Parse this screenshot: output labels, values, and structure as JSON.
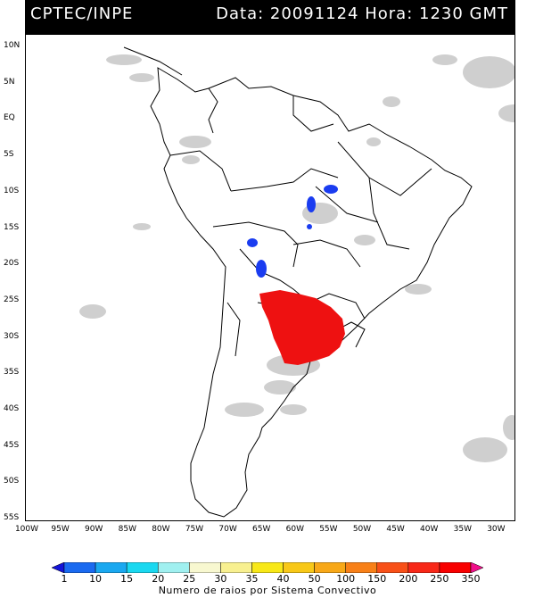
{
  "header": {
    "source": "CPTEC/INPE",
    "datetime": "Data: 20091124 Hora: 1230 GMT"
  },
  "map": {
    "lat_labels": [
      "10N",
      "5N",
      "EQ",
      "5S",
      "10S",
      "15S",
      "20S",
      "25S",
      "30S",
      "35S",
      "40S",
      "45S",
      "50S",
      "55S"
    ],
    "lon_labels": [
      "100W",
      "95W",
      "90W",
      "85W",
      "80W",
      "75W",
      "70W",
      "65W",
      "60W",
      "55W",
      "50W",
      "45W",
      "40W",
      "35W",
      "30W"
    ],
    "colors": {
      "cloud": "#c8c8c8",
      "coast": "#000000",
      "blue_cells": "#1a3cf0",
      "red_cells": "#ee1111"
    }
  },
  "colorbar": {
    "labels": [
      "1",
      "10",
      "15",
      "20",
      "25",
      "30",
      "35",
      "40",
      "50",
      "100",
      "150",
      "200",
      "250",
      "350"
    ],
    "colors": [
      "#1414d8",
      "#1a6af0",
      "#1aa8f0",
      "#1ad8f0",
      "#a0f0f0",
      "#f8f8d0",
      "#f8f090",
      "#f8e818",
      "#f8c818",
      "#f8a818",
      "#f88018",
      "#f85018",
      "#f82818",
      "#f80000",
      "#f0108a"
    ],
    "caption": "Numero de raios por Sistema Convectivo"
  }
}
